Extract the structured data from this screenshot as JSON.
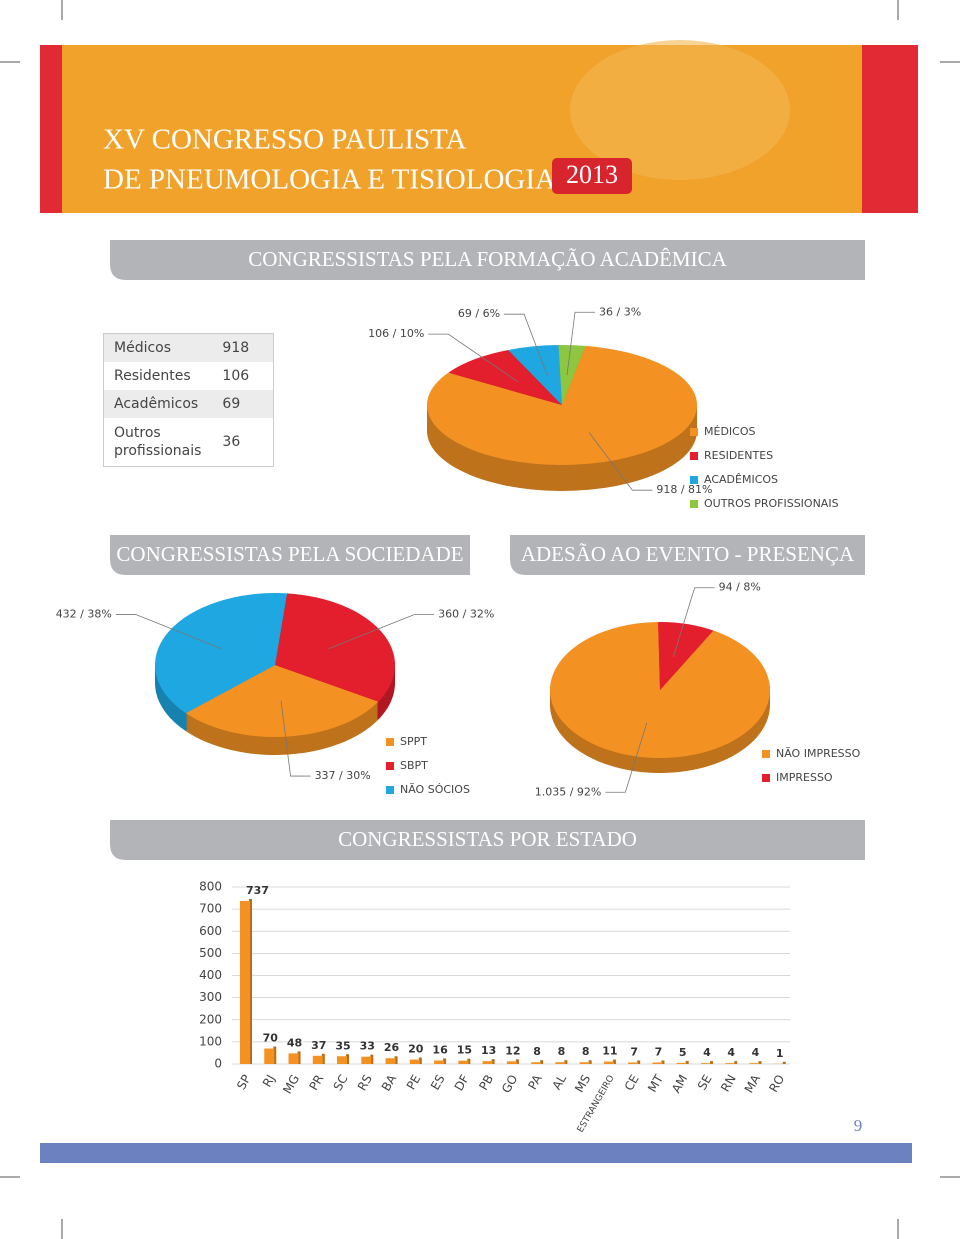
{
  "header": {
    "title_lines": [
      "XV CONGRESSO PAULISTA",
      "DE PNEUMOLOGIA E TISIOLOGIA"
    ],
    "year": "2013"
  },
  "table": {
    "rows": [
      [
        "Médicos",
        "918"
      ],
      [
        "Residentes",
        "106"
      ],
      [
        "Acadêmicos",
        "69"
      ],
      [
        "Outros profissionais",
        "36"
      ]
    ]
  },
  "chart_data": [
    {
      "type": "pie",
      "title": "CONGRESSISTAS PELA FORMAÇÃO ACADÊMICA",
      "categories": [
        "MÉDICOS",
        "RESIDENTES",
        "ACADÊMICOS",
        "OUTROS PROFISSIONAIS"
      ],
      "values": [
        918,
        106,
        69,
        36
      ],
      "value_labels": [
        "918 / 81%",
        "106 / 10%",
        "69 / 6%",
        "36 / 3%"
      ],
      "colors": [
        "#f39223",
        "#e31e2d",
        "#1ea7e1",
        "#8dc63f"
      ]
    },
    {
      "type": "pie",
      "title": "CONGRESSISTAS PELA SOCIEDADE",
      "categories": [
        "SPPT",
        "SBPT",
        "NÃO SÓCIOS"
      ],
      "values": [
        337,
        360,
        432
      ],
      "value_labels": [
        "337 / 30%",
        "360 / 32%",
        "432 / 38%"
      ],
      "colors": [
        "#f39223",
        "#e31e2d",
        "#1ea7e1"
      ]
    },
    {
      "type": "pie",
      "title": "ADESÃO AO EVENTO - PRESENÇA",
      "categories": [
        "NÃO IMPRESSO",
        "IMPRESSO"
      ],
      "values": [
        1035,
        94
      ],
      "value_labels": [
        "1.035 / 92%",
        "94 / 8%"
      ],
      "colors": [
        "#f39223",
        "#e31e2d"
      ]
    },
    {
      "type": "bar",
      "title": "CONGRESSISTAS POR ESTADO",
      "categories": [
        "SP",
        "RJ",
        "MG",
        "PR",
        "SC",
        "RS",
        "BA",
        "PE",
        "ES",
        "DF",
        "PB",
        "GO",
        "PA",
        "AL",
        "MS",
        "ESTRANGEIRO",
        "CE",
        "MT",
        "AM",
        "SE",
        "RN",
        "MA",
        "RO"
      ],
      "values": [
        737,
        70,
        48,
        37,
        35,
        33,
        26,
        20,
        16,
        15,
        13,
        12,
        8,
        8,
        8,
        11,
        7,
        7,
        5,
        4,
        4,
        4,
        1
      ],
      "color": "#f39223",
      "ylim": [
        0,
        800
      ],
      "yticks": [
        0,
        100,
        200,
        300,
        400,
        500,
        600,
        700,
        800
      ],
      "grid": true
    }
  ],
  "page_number": "9"
}
